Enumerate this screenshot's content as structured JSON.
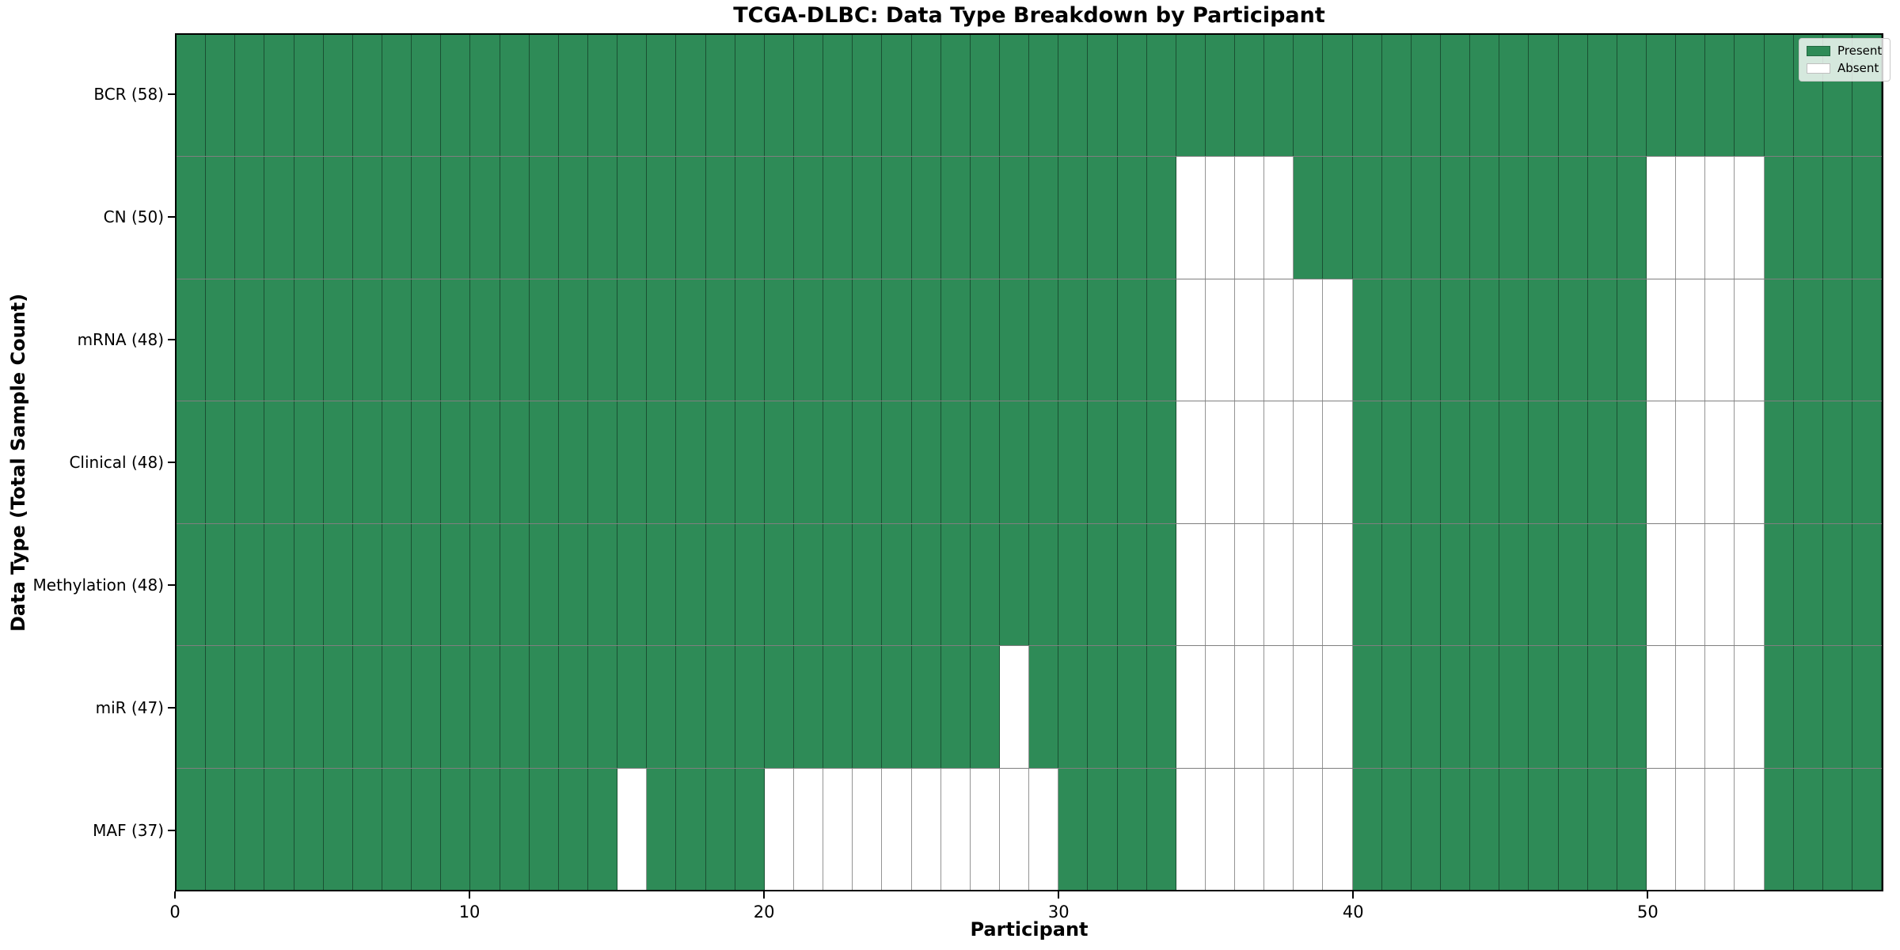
{
  "figure": {
    "title": "TCGA-DLBC: Data Type Breakdown by Participant"
  },
  "chart_data": {
    "type": "heatmap",
    "title": "TCGA-DLBC: Data Type Breakdown by Participant",
    "xlabel": "Participant",
    "ylabel": "Data Type (Total Sample Count)",
    "x_ticks": [
      0,
      10,
      20,
      30,
      40,
      50
    ],
    "x_range": [
      0,
      58
    ],
    "n_participants": 58,
    "present_color": "#2e8b57",
    "absent_color": "#ffffff",
    "grid": true,
    "legend_position": "upper right",
    "legend": [
      {
        "label": "Present",
        "color": "#2e8b57"
      },
      {
        "label": "Absent",
        "color": "#ffffff"
      }
    ],
    "rows": [
      {
        "label": "BCR (58)",
        "total": 58,
        "absent_participants": []
      },
      {
        "label": "CN (50)",
        "total": 50,
        "absent_participants": [
          34,
          35,
          36,
          37,
          50,
          51,
          52,
          53
        ]
      },
      {
        "label": "mRNA (48)",
        "total": 48,
        "absent_participants": [
          34,
          35,
          36,
          37,
          38,
          39,
          50,
          51,
          52,
          53
        ]
      },
      {
        "label": "Clinical (48)",
        "total": 48,
        "absent_participants": [
          34,
          35,
          36,
          37,
          38,
          39,
          50,
          51,
          52,
          53
        ]
      },
      {
        "label": "Methylation (48)",
        "total": 48,
        "absent_participants": [
          34,
          35,
          36,
          37,
          38,
          39,
          50,
          51,
          52,
          53
        ]
      },
      {
        "label": "miR (47)",
        "total": 47,
        "absent_participants": [
          28,
          34,
          35,
          36,
          37,
          38,
          39,
          50,
          51,
          52,
          53
        ]
      },
      {
        "label": "MAF (37)",
        "total": 37,
        "absent_participants": [
          15,
          20,
          21,
          22,
          23,
          24,
          25,
          26,
          27,
          28,
          29,
          34,
          35,
          36,
          37,
          38,
          39,
          50,
          51,
          52,
          53
        ]
      }
    ]
  }
}
